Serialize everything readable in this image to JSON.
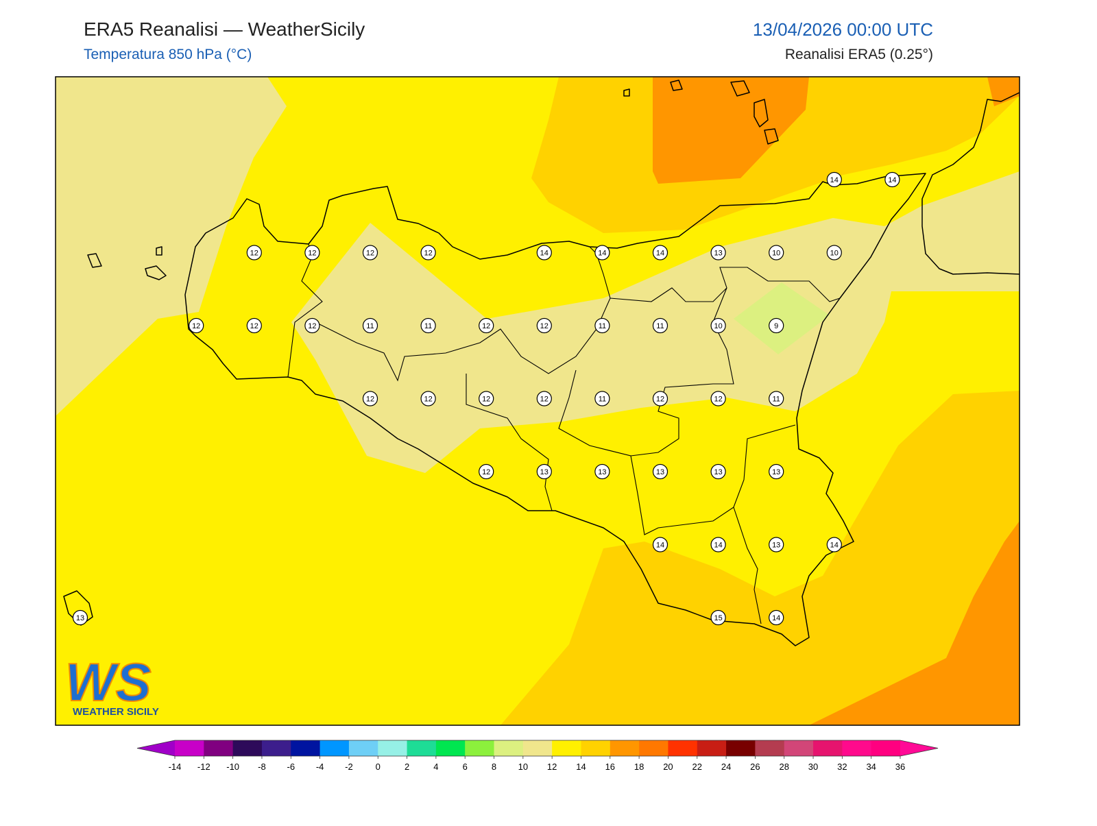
{
  "header": {
    "title": "ERA5 Reanalisi — WeatherSicily",
    "subtitle": "Temperatura 850 hPa (°C)",
    "datetime": "13/04/2026 00:00 UTC",
    "source": "Reanalisi ERA5 (0.25°)"
  },
  "map": {
    "grid": [
      [
        null,
        null,
        null,
        null,
        null,
        null,
        null,
        null,
        null,
        null,
        null,
        null,
        null,
        14,
        14
      ],
      [
        null,
        null,
        null,
        12,
        12,
        12,
        12,
        null,
        14,
        14,
        14,
        13,
        10,
        10,
        null
      ],
      [
        null,
        null,
        12,
        12,
        12,
        11,
        11,
        12,
        12,
        11,
        11,
        10,
        9,
        null,
        null
      ],
      [
        null,
        null,
        null,
        null,
        null,
        12,
        12,
        12,
        12,
        11,
        12,
        12,
        11,
        null,
        null
      ],
      [
        null,
        null,
        null,
        null,
        null,
        null,
        null,
        12,
        13,
        13,
        13,
        13,
        13,
        null,
        null
      ],
      [
        null,
        null,
        null,
        null,
        null,
        null,
        null,
        null,
        null,
        null,
        14,
        14,
        13,
        14,
        null
      ],
      [
        13,
        null,
        null,
        null,
        null,
        null,
        null,
        null,
        null,
        null,
        null,
        15,
        14,
        null,
        null
      ]
    ]
  },
  "logo": {
    "letters": "WS",
    "text": "WEATHER SICILY"
  },
  "colorbar": {
    "ticks": [
      -14,
      -12,
      -10,
      -8,
      -6,
      -4,
      -2,
      0,
      2,
      4,
      6,
      8,
      10,
      12,
      14,
      16,
      18,
      20,
      22,
      24,
      26,
      28,
      30,
      32,
      34,
      36
    ],
    "colors": [
      "#a000c8",
      "#c800c8",
      "#800080",
      "#2d0a5a",
      "#3c1e8c",
      "#0014a0",
      "#0096ff",
      "#6ecff6",
      "#96f0e6",
      "#1edc96",
      "#00e650",
      "#8cf03c",
      "#dcf080",
      "#f0e68c",
      "#fff000",
      "#ffd200",
      "#ff9600",
      "#ff7800",
      "#ff3200",
      "#c81e14",
      "#780000",
      "#b43c50",
      "#d24678",
      "#e6146e",
      "#ff0a8c",
      "#ff0080",
      "#ff0a96"
    ]
  }
}
